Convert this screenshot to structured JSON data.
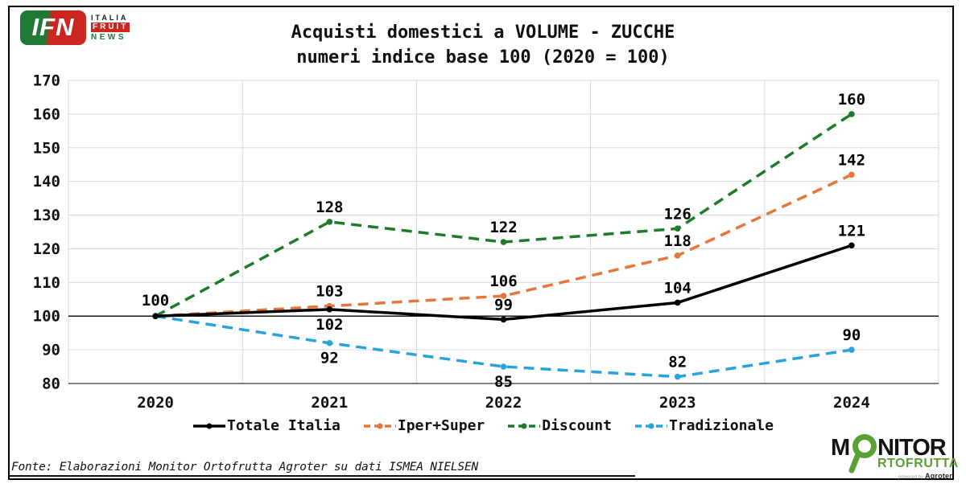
{
  "header": {
    "ifn_logo": {
      "acronym": "IFN",
      "word1": "ITALIA",
      "word2": "FRUIT",
      "word3": "NEWS"
    }
  },
  "chart_data": {
    "type": "line",
    "title": "Acquisti domestici a VOLUME - ZUCCHE",
    "subtitle": "numeri indice base 100 (2020 = 100)",
    "categories": [
      "2020",
      "2021",
      "2022",
      "2023",
      "2024"
    ],
    "series": [
      {
        "name": "Totale Italia",
        "color": "#000000",
        "style": "solid",
        "values": [
          100,
          102,
          99,
          104,
          121
        ],
        "label_side": [
          "none",
          "below",
          "above",
          "above",
          "above"
        ]
      },
      {
        "name": "Iper+Super",
        "color": "#E6763A",
        "style": "dashed",
        "values": [
          100,
          103,
          106,
          118,
          142
        ],
        "label_side": [
          "none",
          "above",
          "above",
          "above",
          "above"
        ]
      },
      {
        "name": "Discount",
        "color": "#1E7B2E",
        "style": "dashed",
        "values": [
          100,
          128,
          122,
          126,
          160
        ],
        "label_side": [
          "none",
          "above",
          "above",
          "above",
          "above"
        ]
      },
      {
        "name": "Tradizionale",
        "color": "#29A3DC",
        "style": "dashed",
        "values": [
          100,
          92,
          85,
          82,
          90
        ],
        "label_side": [
          "none",
          "below",
          "below",
          "above",
          "above"
        ]
      }
    ],
    "origin_label": "100",
    "ylim": [
      80,
      170
    ],
    "ytick_step": 10,
    "baseline_value": 100,
    "grid": true,
    "gridline_color": "#D9D9D9",
    "axis_color": "#595959",
    "legend_position": "bottom"
  },
  "footer": {
    "source": "Fonte: Elaborazioni Monitor Ortofrutta Agroter su dati ISMEA NIELSEN",
    "monitor_logo": {
      "m": "M",
      "nitor": "NITOR",
      "ortofrutta": "RTOFRUTTA",
      "powered_by": "powered by",
      "brand": "Agroter",
      "green": "#5AA032"
    }
  }
}
